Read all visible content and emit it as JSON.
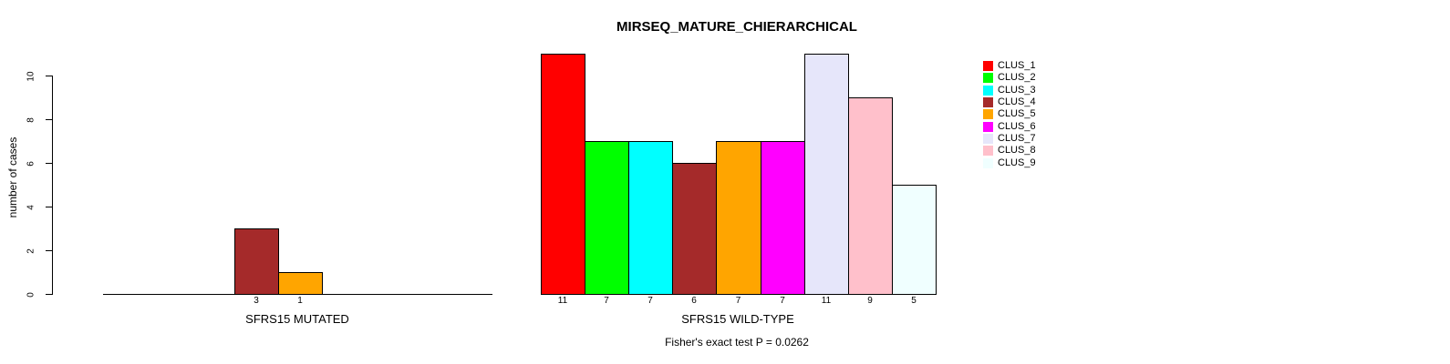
{
  "chart_data": {
    "type": "bar",
    "title": "MIRSEQ_MATURE_CHIERARCHICAL",
    "ylabel": "number of cases",
    "ylim": [
      0,
      10
    ],
    "yticks": [
      "0",
      "2",
      "4",
      "6",
      "8",
      "10"
    ],
    "caption": "Fisher's exact test P = 0.0262",
    "legend_position": "right",
    "grid": false,
    "groups": [
      {
        "label": "SFRS15 MUTATED",
        "bars": [
          {
            "cluster": "CLUS_4",
            "value": 3,
            "label": "3",
            "color": "#A52A2A"
          },
          {
            "cluster": "CLUS_5",
            "value": 1,
            "label": "1",
            "color": "#FFA500"
          }
        ]
      },
      {
        "label": "SFRS15 WILD-TYPE",
        "bars": [
          {
            "cluster": "CLUS_1",
            "value": 11,
            "label": "11",
            "color": "#FF0000"
          },
          {
            "cluster": "CLUS_2",
            "value": 7,
            "label": "7",
            "color": "#00FF00"
          },
          {
            "cluster": "CLUS_3",
            "value": 7,
            "label": "7",
            "color": "#00FFFF"
          },
          {
            "cluster": "CLUS_4",
            "value": 6,
            "label": "6",
            "color": "#A52A2A"
          },
          {
            "cluster": "CLUS_5",
            "value": 7,
            "label": "7",
            "color": "#FFA500"
          },
          {
            "cluster": "CLUS_6",
            "value": 7,
            "label": "7",
            "color": "#FF00FF"
          },
          {
            "cluster": "CLUS_7",
            "value": 11,
            "label": "11",
            "color": "#E6E6FA"
          },
          {
            "cluster": "CLUS_8",
            "value": 9,
            "label": "9",
            "color": "#FFC0CB"
          },
          {
            "cluster": "CLUS_9",
            "value": 5,
            "label": "5",
            "color": "#F0FFFF"
          }
        ]
      }
    ],
    "legend": [
      {
        "label": "CLUS_1",
        "color": "#FF0000"
      },
      {
        "label": "CLUS_2",
        "color": "#00FF00"
      },
      {
        "label": "CLUS_3",
        "color": "#00FFFF"
      },
      {
        "label": "CLUS_4",
        "color": "#A52A2A"
      },
      {
        "label": "CLUS_5",
        "color": "#FFA500"
      },
      {
        "label": "CLUS_6",
        "color": "#FF00FF"
      },
      {
        "label": "CLUS_7",
        "color": "#E6E6FA"
      },
      {
        "label": "CLUS_8",
        "color": "#FFC0CB"
      },
      {
        "label": "CLUS_9",
        "color": "#F0FFFF"
      }
    ]
  }
}
